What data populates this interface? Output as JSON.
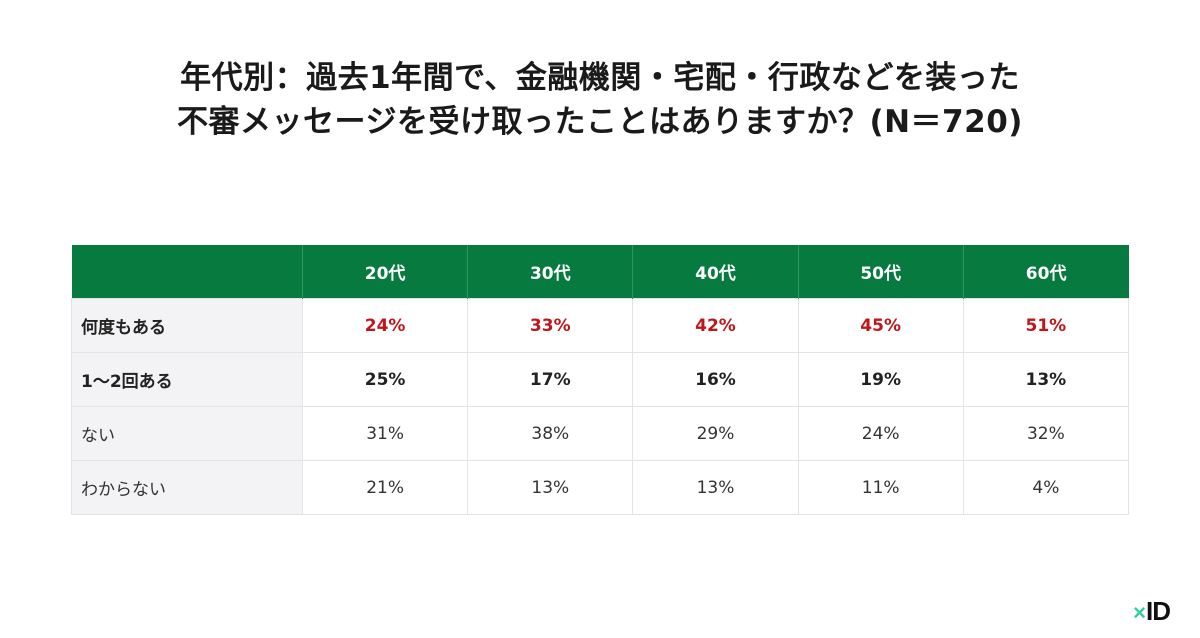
{
  "title": {
    "line1": "年代別：過去1年間で、金融機関・宅配・行政などを装った",
    "line2": "不審メッセージを受け取ったことはありますか？(N＝720)"
  },
  "table": {
    "headers": [
      "",
      "20代",
      "30代",
      "40代",
      "50代",
      "60代"
    ],
    "rows": [
      {
        "label": "何度もある",
        "values": [
          "24%",
          "33%",
          "42%",
          "45%",
          "51%"
        ]
      },
      {
        "label": "1〜2回ある",
        "values": [
          "25%",
          "17%",
          "16%",
          "19%",
          "13%"
        ]
      },
      {
        "label": "ない",
        "values": [
          "31%",
          "38%",
          "29%",
          "24%",
          "32%"
        ]
      },
      {
        "label": "わからない",
        "values": [
          "21%",
          "13%",
          "13%",
          "11%",
          "4%"
        ]
      }
    ]
  },
  "colors": {
    "header_bg": "#067a3f",
    "highlight_red": "#c0161a",
    "label_bg": "#f3f3f5",
    "logo_accent": "#2ecf9e"
  },
  "logo": {
    "mark": "×",
    "text": "ID"
  },
  "chart_data": {
    "type": "table",
    "title": "年代別：過去1年間で、金融機関・宅配・行政などを装った不審メッセージを受け取ったことはありますか？(N＝720)",
    "categories": [
      "20代",
      "30代",
      "40代",
      "50代",
      "60代"
    ],
    "series": [
      {
        "name": "何度もある",
        "values": [
          24,
          33,
          42,
          45,
          51
        ]
      },
      {
        "name": "1〜2回ある",
        "values": [
          25,
          17,
          16,
          19,
          13
        ]
      },
      {
        "name": "ない",
        "values": [
          31,
          38,
          29,
          24,
          32
        ]
      },
      {
        "name": "わからない",
        "values": [
          21,
          13,
          13,
          11,
          4
        ]
      }
    ],
    "unit": "%"
  }
}
